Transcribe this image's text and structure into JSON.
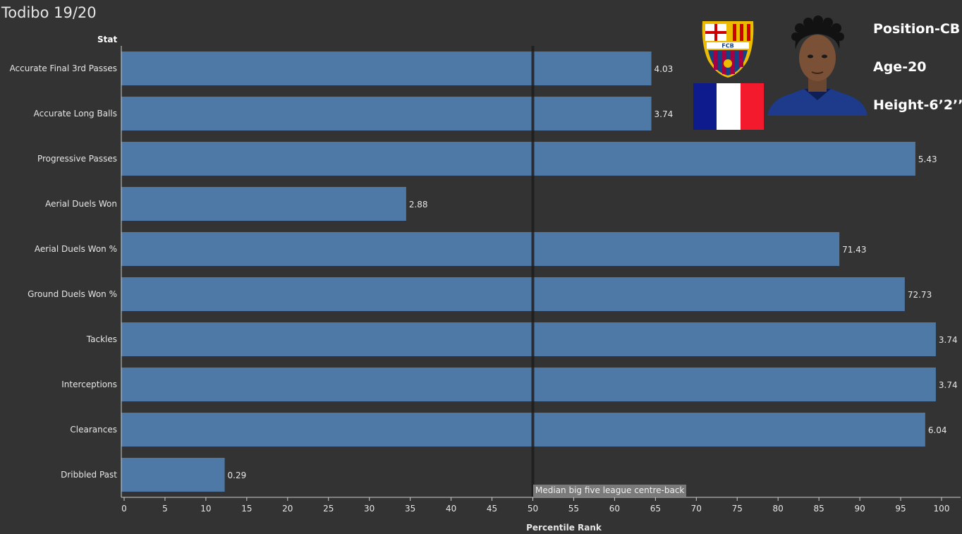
{
  "header": {
    "title": "Todibo 19/20",
    "stat_column_header": "Stat"
  },
  "player_info": {
    "position": "Position-CB",
    "age": "Age-20",
    "height": "Height-6’2’’"
  },
  "badge": {
    "text": "FCB",
    "colors": {
      "blue": "#154284",
      "red": "#a50044",
      "gold": "#edbb00"
    }
  },
  "flag_colors": [
    "#0d1b8c",
    "#ffffff",
    "#f21a2c"
  ],
  "median_annotation": {
    "label": "Median big five league centre-back",
    "value": 50
  },
  "chart_data": {
    "type": "bar",
    "orientation": "horizontal",
    "categories": [
      "Accurate Final 3rd Passes",
      "Accurate Long Balls",
      "Progressive Passes",
      "Aerial Duels Won",
      "Aerial Duels Won %",
      "Ground Duels Won %",
      "Tackles",
      "Interceptions",
      "Clearances",
      "Dribbled Past"
    ],
    "values": [
      64.5,
      64.5,
      96.8,
      34.5,
      87.5,
      95.5,
      99.3,
      99.3,
      98.0,
      12.3
    ],
    "data_labels": [
      "4.03",
      "3.74",
      "5.43",
      "2.88",
      "71.43",
      "72.73",
      "3.74",
      "3.74",
      "6.04",
      "0.29"
    ],
    "xlabel": "Percentile Rank",
    "ylabel": "Stat",
    "xlim": [
      0,
      100
    ],
    "xticks": [
      0,
      5,
      10,
      15,
      20,
      25,
      30,
      35,
      40,
      45,
      50,
      55,
      60,
      65,
      70,
      75,
      80,
      85,
      90,
      95,
      100
    ],
    "bar_color": "#4e79a7",
    "background": "#333333",
    "grid": false
  }
}
